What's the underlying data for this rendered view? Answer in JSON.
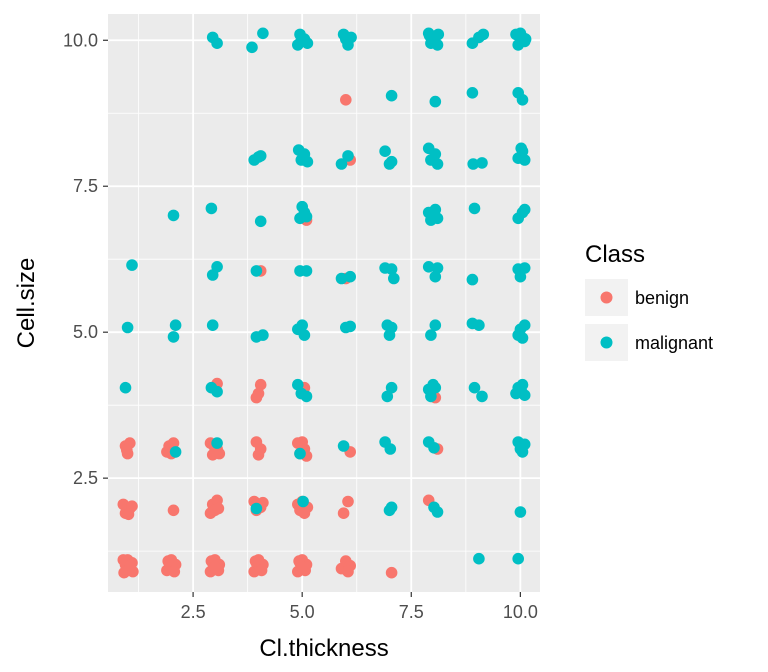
{
  "chart_data": {
    "type": "scatter",
    "title": "",
    "xlabel": "Cl.thickness",
    "ylabel": "Cell.size",
    "xlim": [
      0.55,
      10.45
    ],
    "ylim": [
      0.55,
      10.45
    ],
    "x_ticks": [
      2.5,
      5.0,
      7.5,
      10.0
    ],
    "x_tick_labels": [
      "2.5",
      "5.0",
      "7.5",
      "10.0"
    ],
    "y_ticks": [
      2.5,
      5.0,
      7.5,
      10.0
    ],
    "y_tick_labels": [
      "2.5",
      "5.0",
      "7.5",
      "10.0"
    ],
    "grid": true,
    "jitter": true,
    "legend": {
      "title": "Class",
      "position": "right",
      "entries": [
        {
          "label": "benign",
          "color": "#F8766D"
        },
        {
          "label": "malignant",
          "color": "#00BFC4"
        }
      ]
    },
    "series": [
      {
        "name": "benign",
        "color": "#F8766D",
        "points": [
          [
            0.92,
            0.88
          ],
          [
            0.95,
            1.02
          ],
          [
            1.0,
            1.1
          ],
          [
            1.05,
            0.95
          ],
          [
            1.1,
            1.05
          ],
          [
            0.97,
            0.94
          ],
          [
            1.02,
            1.06
          ],
          [
            1.12,
            0.9
          ],
          [
            0.9,
            1.1
          ],
          [
            1.06,
            1.0
          ],
          [
            1.9,
            0.92
          ],
          [
            1.95,
            1.05
          ],
          [
            2.0,
            1.1
          ],
          [
            2.05,
            0.95
          ],
          [
            2.1,
            1.02
          ],
          [
            1.93,
            1.08
          ],
          [
            2.07,
            0.9
          ],
          [
            2.9,
            0.9
          ],
          [
            2.95,
            1.05
          ],
          [
            3.0,
            1.1
          ],
          [
            3.05,
            0.95
          ],
          [
            3.1,
            1.02
          ],
          [
            2.92,
            1.08
          ],
          [
            3.08,
            0.92
          ],
          [
            3.0,
            0.98
          ],
          [
            3.9,
            0.9
          ],
          [
            3.95,
            1.05
          ],
          [
            4.0,
            1.1
          ],
          [
            4.05,
            0.95
          ],
          [
            4.1,
            1.02
          ],
          [
            3.93,
            1.08
          ],
          [
            4.07,
            0.92
          ],
          [
            4.9,
            0.9
          ],
          [
            4.95,
            1.05
          ],
          [
            5.0,
            1.1
          ],
          [
            5.05,
            0.95
          ],
          [
            5.1,
            1.02
          ],
          [
            4.93,
            1.08
          ],
          [
            5.07,
            0.92
          ],
          [
            5.0,
            0.98
          ],
          [
            5.9,
            0.95
          ],
          [
            6.0,
            1.08
          ],
          [
            6.1,
            1.0
          ],
          [
            6.05,
            0.9
          ],
          [
            7.05,
            0.88
          ],
          [
            0.9,
            2.05
          ],
          [
            0.95,
            1.9
          ],
          [
            1.05,
            1.98
          ],
          [
            1.1,
            2.02
          ],
          [
            1.02,
            1.88
          ],
          [
            2.05,
            1.95
          ],
          [
            2.95,
            2.05
          ],
          [
            3.0,
            1.95
          ],
          [
            3.05,
            2.12
          ],
          [
            2.9,
            1.9
          ],
          [
            3.08,
            1.98
          ],
          [
            3.9,
            2.1
          ],
          [
            3.95,
            1.95
          ],
          [
            4.0,
            2.05
          ],
          [
            4.05,
            2.0
          ],
          [
            4.1,
            2.08
          ],
          [
            4.9,
            2.05
          ],
          [
            4.95,
            1.95
          ],
          [
            5.05,
            1.9
          ],
          [
            5.0,
            2.1
          ],
          [
            5.12,
            2.0
          ],
          [
            5.95,
            1.9
          ],
          [
            6.05,
            2.1
          ],
          [
            7.9,
            2.12
          ],
          [
            0.95,
            3.05
          ],
          [
            1.0,
            2.92
          ],
          [
            1.05,
            3.1
          ],
          [
            0.98,
            2.98
          ],
          [
            1.9,
            2.95
          ],
          [
            1.95,
            3.05
          ],
          [
            2.05,
            3.1
          ],
          [
            2.0,
            2.92
          ],
          [
            2.9,
            3.1
          ],
          [
            2.95,
            2.9
          ],
          [
            3.05,
            3.0
          ],
          [
            3.1,
            2.92
          ],
          [
            2.98,
            3.05
          ],
          [
            3.95,
            3.12
          ],
          [
            4.0,
            2.9
          ],
          [
            4.05,
            3.0
          ],
          [
            4.9,
            3.1
          ],
          [
            4.95,
            2.92
          ],
          [
            5.05,
            3.0
          ],
          [
            5.1,
            2.88
          ],
          [
            5.0,
            3.12
          ],
          [
            6.1,
            2.95
          ],
          [
            8.1,
            3.0
          ],
          [
            3.05,
            4.12
          ],
          [
            3.95,
            3.88
          ],
          [
            4.05,
            4.1
          ],
          [
            4.0,
            3.95
          ],
          [
            5.05,
            4.05
          ],
          [
            8.05,
            3.88
          ],
          [
            4.05,
            6.05
          ],
          [
            6.0,
            5.92
          ],
          [
            5.1,
            6.92
          ],
          [
            6.1,
            7.95
          ],
          [
            6.0,
            8.98
          ]
        ]
      },
      {
        "name": "malignant",
        "color": "#00BFC4",
        "points": [
          [
            9.05,
            1.12
          ],
          [
            9.95,
            1.12
          ],
          [
            3.95,
            1.98
          ],
          [
            5.02,
            2.1
          ],
          [
            7.05,
            2.0
          ],
          [
            7.0,
            1.95
          ],
          [
            8.02,
            2.0
          ],
          [
            8.1,
            1.92
          ],
          [
            10.0,
            1.92
          ],
          [
            2.1,
            2.95
          ],
          [
            3.05,
            3.1
          ],
          [
            4.95,
            2.92
          ],
          [
            5.95,
            3.05
          ],
          [
            6.9,
            3.12
          ],
          [
            7.02,
            3.0
          ],
          [
            7.9,
            3.12
          ],
          [
            8.02,
            3.02
          ],
          [
            9.95,
            3.12
          ],
          [
            10.05,
            2.95
          ],
          [
            10.1,
            3.08
          ],
          [
            10.0,
            3.0
          ],
          [
            0.95,
            4.05
          ],
          [
            2.92,
            4.05
          ],
          [
            3.05,
            3.98
          ],
          [
            4.9,
            4.1
          ],
          [
            4.98,
            3.95
          ],
          [
            5.1,
            3.9
          ],
          [
            6.95,
            3.9
          ],
          [
            7.05,
            4.05
          ],
          [
            7.9,
            4.02
          ],
          [
            7.95,
            3.9
          ],
          [
            8.05,
            4.05
          ],
          [
            8.0,
            4.1
          ],
          [
            8.95,
            4.05
          ],
          [
            9.12,
            3.9
          ],
          [
            9.9,
            3.95
          ],
          [
            9.95,
            4.05
          ],
          [
            10.05,
            4.1
          ],
          [
            10.1,
            3.92
          ],
          [
            10.02,
            4.0
          ],
          [
            1.0,
            5.08
          ],
          [
            2.05,
            4.92
          ],
          [
            2.1,
            5.12
          ],
          [
            2.95,
            5.12
          ],
          [
            3.95,
            4.92
          ],
          [
            4.1,
            4.95
          ],
          [
            4.9,
            5.05
          ],
          [
            5.0,
            5.12
          ],
          [
            5.05,
            4.95
          ],
          [
            6.0,
            5.08
          ],
          [
            6.1,
            5.1
          ],
          [
            6.95,
            5.12
          ],
          [
            7.0,
            4.95
          ],
          [
            7.05,
            5.08
          ],
          [
            7.95,
            4.95
          ],
          [
            8.05,
            5.12
          ],
          [
            8.9,
            5.15
          ],
          [
            9.05,
            5.12
          ],
          [
            9.95,
            4.95
          ],
          [
            10.0,
            5.05
          ],
          [
            10.1,
            5.12
          ],
          [
            10.05,
            4.9
          ],
          [
            1.1,
            6.15
          ],
          [
            2.95,
            5.98
          ],
          [
            3.05,
            6.12
          ],
          [
            3.95,
            6.05
          ],
          [
            4.95,
            6.05
          ],
          [
            5.1,
            6.05
          ],
          [
            5.9,
            5.92
          ],
          [
            6.1,
            5.95
          ],
          [
            6.9,
            6.1
          ],
          [
            7.05,
            6.08
          ],
          [
            7.1,
            5.92
          ],
          [
            7.9,
            6.12
          ],
          [
            8.05,
            5.95
          ],
          [
            8.1,
            6.1
          ],
          [
            8.9,
            5.9
          ],
          [
            9.95,
            6.08
          ],
          [
            10.0,
            5.95
          ],
          [
            10.1,
            6.1
          ],
          [
            2.05,
            7.0
          ],
          [
            2.92,
            7.12
          ],
          [
            4.05,
            6.9
          ],
          [
            4.95,
            6.95
          ],
          [
            5.0,
            7.15
          ],
          [
            5.05,
            7.05
          ],
          [
            5.1,
            6.98
          ],
          [
            7.9,
            7.05
          ],
          [
            7.95,
            6.92
          ],
          [
            8.05,
            7.1
          ],
          [
            8.1,
            6.95
          ],
          [
            8.0,
            7.0
          ],
          [
            8.95,
            7.12
          ],
          [
            9.95,
            6.95
          ],
          [
            10.05,
            7.05
          ],
          [
            10.1,
            7.1
          ],
          [
            3.9,
            7.95
          ],
          [
            4.0,
            8.0
          ],
          [
            4.05,
            8.02
          ],
          [
            4.92,
            8.12
          ],
          [
            4.98,
            7.95
          ],
          [
            5.05,
            8.05
          ],
          [
            5.12,
            7.92
          ],
          [
            5.9,
            7.88
          ],
          [
            6.05,
            8.02
          ],
          [
            6.9,
            8.1
          ],
          [
            7.0,
            7.88
          ],
          [
            7.05,
            7.92
          ],
          [
            7.9,
            8.15
          ],
          [
            7.95,
            7.95
          ],
          [
            8.05,
            8.05
          ],
          [
            8.1,
            7.88
          ],
          [
            8.92,
            7.88
          ],
          [
            9.12,
            7.9
          ],
          [
            9.95,
            7.98
          ],
          [
            10.05,
            8.1
          ],
          [
            10.1,
            7.95
          ],
          [
            10.02,
            8.15
          ],
          [
            7.05,
            9.05
          ],
          [
            8.05,
            8.95
          ],
          [
            8.9,
            9.1
          ],
          [
            9.95,
            9.1
          ],
          [
            10.05,
            8.98
          ],
          [
            2.95,
            10.05
          ],
          [
            3.05,
            9.95
          ],
          [
            3.85,
            9.88
          ],
          [
            4.1,
            10.12
          ],
          [
            4.9,
            9.92
          ],
          [
            4.95,
            10.1
          ],
          [
            5.05,
            10.02
          ],
          [
            5.12,
            9.95
          ],
          [
            4.98,
            10.0
          ],
          [
            5.95,
            10.1
          ],
          [
            6.05,
            9.92
          ],
          [
            6.12,
            10.05
          ],
          [
            6.0,
            10.02
          ],
          [
            7.9,
            10.12
          ],
          [
            7.95,
            9.95
          ],
          [
            8.05,
            10.05
          ],
          [
            8.1,
            9.92
          ],
          [
            8.0,
            10.0
          ],
          [
            7.92,
            10.08
          ],
          [
            8.12,
            10.1
          ],
          [
            8.9,
            9.95
          ],
          [
            9.05,
            10.05
          ],
          [
            9.15,
            10.1
          ],
          [
            9.9,
            10.1
          ],
          [
            9.95,
            9.92
          ],
          [
            10.05,
            10.05
          ],
          [
            10.1,
            9.98
          ],
          [
            10.0,
            10.12
          ],
          [
            10.12,
            10.02
          ]
        ]
      }
    ]
  }
}
